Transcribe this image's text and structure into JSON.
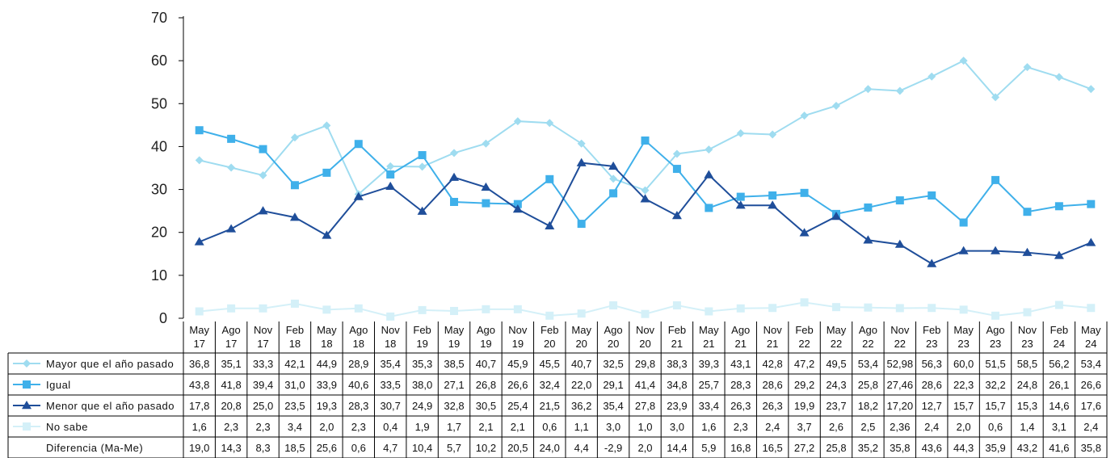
{
  "chart_data": {
    "type": "line",
    "categories": [
      [
        "May",
        "17"
      ],
      [
        "Ago",
        "17"
      ],
      [
        "Nov",
        "17"
      ],
      [
        "Feb",
        "18"
      ],
      [
        "May",
        "18"
      ],
      [
        "Ago",
        "18"
      ],
      [
        "Nov",
        "18"
      ],
      [
        "Feb",
        "19"
      ],
      [
        "May",
        "19"
      ],
      [
        "Ago",
        "19"
      ],
      [
        "Nov",
        "19"
      ],
      [
        "Feb",
        "20"
      ],
      [
        "May",
        "20"
      ],
      [
        "Ago",
        "20"
      ],
      [
        "Nov",
        "20"
      ],
      [
        "Feb",
        "21"
      ],
      [
        "May",
        "21"
      ],
      [
        "Ago",
        "21"
      ],
      [
        "Nov",
        "21"
      ],
      [
        "Feb",
        "22"
      ],
      [
        "May",
        "22"
      ],
      [
        "Ago",
        "22"
      ],
      [
        "Nov",
        "22"
      ],
      [
        "Feb",
        "23"
      ],
      [
        "May",
        "23"
      ],
      [
        "Ago",
        "23"
      ],
      [
        "Nov",
        "23"
      ],
      [
        "Feb",
        "24"
      ],
      [
        "May",
        "24"
      ]
    ],
    "ylim": [
      0,
      70
    ],
    "yticks": [
      "0",
      "10",
      "20",
      "30",
      "40",
      "50",
      "60",
      "70"
    ],
    "series": [
      {
        "name": "Mayor que el año pasado",
        "color": "#9fdcf0",
        "marker": "diamond",
        "values": [
          36.8,
          35.1,
          33.3,
          42.1,
          44.9,
          28.9,
          35.4,
          35.3,
          38.5,
          40.7,
          45.9,
          45.5,
          40.7,
          32.5,
          29.8,
          38.3,
          39.3,
          43.1,
          42.8,
          47.2,
          49.5,
          53.4,
          52.98,
          56.3,
          60.0,
          51.5,
          58.5,
          56.2,
          53.4
        ],
        "labels": [
          "36,8",
          "35,1",
          "33,3",
          "42,1",
          "44,9",
          "28,9",
          "35,4",
          "35,3",
          "38,5",
          "40,7",
          "45,9",
          "45,5",
          "40,7",
          "32,5",
          "29,8",
          "38,3",
          "39,3",
          "43,1",
          "42,8",
          "47,2",
          "49,5",
          "53,4",
          "52,98",
          "56,3",
          "60,0",
          "51,5",
          "58,5",
          "56,2",
          "53,4"
        ]
      },
      {
        "name": "Igual",
        "color": "#3fb0ea",
        "marker": "square",
        "values": [
          43.8,
          41.8,
          39.4,
          31.0,
          33.9,
          40.6,
          33.5,
          38.0,
          27.1,
          26.8,
          26.6,
          32.4,
          22.0,
          29.1,
          41.4,
          34.8,
          25.7,
          28.3,
          28.6,
          29.2,
          24.3,
          25.8,
          27.46,
          28.6,
          22.3,
          32.2,
          24.8,
          26.1,
          26.6
        ],
        "labels": [
          "43,8",
          "41,8",
          "39,4",
          "31,0",
          "33,9",
          "40,6",
          "33,5",
          "38,0",
          "27,1",
          "26,8",
          "26,6",
          "32,4",
          "22,0",
          "29,1",
          "41,4",
          "34,8",
          "25,7",
          "28,3",
          "28,6",
          "29,2",
          "24,3",
          "25,8",
          "27,46",
          "28,6",
          "22,3",
          "32,2",
          "24,8",
          "26,1",
          "26,6"
        ]
      },
      {
        "name": "Menor que el año pasado",
        "color": "#1f4e9a",
        "marker": "triangle",
        "values": [
          17.8,
          20.8,
          25.0,
          23.5,
          19.3,
          28.3,
          30.7,
          24.9,
          32.8,
          30.5,
          25.4,
          21.5,
          36.2,
          35.4,
          27.8,
          23.9,
          33.4,
          26.3,
          26.3,
          19.9,
          23.7,
          18.2,
          17.2,
          12.7,
          15.7,
          15.7,
          15.3,
          14.6,
          17.6
        ],
        "labels": [
          "17,8",
          "20,8",
          "25,0",
          "23,5",
          "19,3",
          "28,3",
          "30,7",
          "24,9",
          "32,8",
          "30,5",
          "25,4",
          "21,5",
          "36,2",
          "35,4",
          "27,8",
          "23,9",
          "33,4",
          "26,3",
          "26,3",
          "19,9",
          "23,7",
          "18,2",
          "17,20",
          "12,7",
          "15,7",
          "15,7",
          "15,3",
          "14,6",
          "17,6"
        ]
      },
      {
        "name": "No sabe",
        "color": "#d4f0f8",
        "marker": "square",
        "values": [
          1.6,
          2.3,
          2.3,
          3.4,
          2.0,
          2.3,
          0.4,
          1.9,
          1.7,
          2.1,
          2.1,
          0.6,
          1.1,
          3.0,
          1.0,
          3.0,
          1.6,
          2.3,
          2.4,
          3.7,
          2.6,
          2.5,
          2.36,
          2.4,
          2.0,
          0.6,
          1.4,
          3.1,
          2.4
        ],
        "labels": [
          "1,6",
          "2,3",
          "2,3",
          "3,4",
          "2,0",
          "2,3",
          "0,4",
          "1,9",
          "1,7",
          "2,1",
          "2,1",
          "0,6",
          "1,1",
          "3,0",
          "1,0",
          "3,0",
          "1,6",
          "2,3",
          "2,4",
          "3,7",
          "2,6",
          "2,5",
          "2,36",
          "2,4",
          "2,0",
          "0,6",
          "1,4",
          "3,1",
          "2,4"
        ]
      }
    ],
    "extra_row": {
      "name": "Diferencia (Ma-Me)",
      "values": [
        19.0,
        14.3,
        8.3,
        18.5,
        25.6,
        0.6,
        4.7,
        10.4,
        5.7,
        10.2,
        20.5,
        24.0,
        4.4,
        -2.9,
        2.0,
        14.4,
        5.9,
        16.8,
        16.5,
        27.2,
        25.8,
        35.2,
        35.8,
        43.6,
        44.3,
        35.9,
        43.2,
        41.6,
        35.8
      ],
      "labels": [
        "19,0",
        "14,3",
        "8,3",
        "18,5",
        "25,6",
        "0,6",
        "4,7",
        "10,4",
        "5,7",
        "10,2",
        "20,5",
        "24,0",
        "4,4",
        "-2,9",
        "2,0",
        "14,4",
        "5,9",
        "16,8",
        "16,5",
        "27,2",
        "25,8",
        "35,2",
        "35,8",
        "43,6",
        "44,3",
        "35,9",
        "43,2",
        "41,6",
        "35,8"
      ]
    }
  }
}
